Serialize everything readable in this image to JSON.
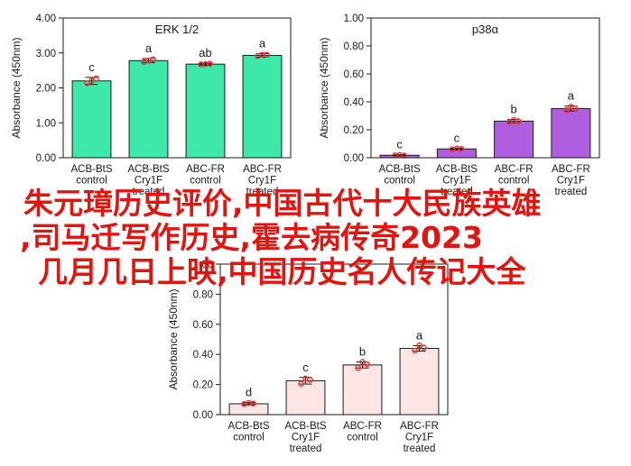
{
  "overlay": {
    "lines": [
      "朱元璋历史评价,中国古代十大民族英雄",
      ",司马迁写作历史,霍去病传奇2023",
      "几月几日上映,中国历史名人传记大全"
    ]
  },
  "colors": {
    "overlay_text": "#e1140f",
    "dot": "#ff2a2a",
    "erk_bar": "#3ee8a8",
    "p38_bar": "#b05ee0",
    "third_bar": "#fde6e4"
  },
  "chart_data": [
    {
      "id": "erk",
      "type": "bar",
      "title": "ERK 1/2",
      "ylabel": "Absorbance (450nm)",
      "xlabel": "",
      "ylim": [
        0,
        4.0
      ],
      "yticks": [
        "0.00",
        "1.00",
        "2.00",
        "3.00",
        "4.00"
      ],
      "categories": [
        [
          "ACB-BtS",
          "control"
        ],
        [
          "ACB-BtS",
          "Cry1F",
          "treated"
        ],
        [
          "ABC-FR",
          "control"
        ],
        [
          "ABC-FR",
          "Cry1F",
          "treated"
        ]
      ],
      "values": [
        2.2,
        2.78,
        2.68,
        2.93
      ],
      "errors": [
        0.1,
        0.06,
        0.03,
        0.05
      ],
      "points": [
        [
          2.13,
          2.2,
          2.27
        ],
        [
          2.74,
          2.78,
          2.82
        ],
        [
          2.67,
          2.68,
          2.69
        ],
        [
          2.91,
          2.95,
          2.95
        ]
      ],
      "letters": [
        "c",
        "a",
        "ab",
        "a"
      ],
      "bar_color": "#3ee8a8",
      "grid": false
    },
    {
      "id": "p38",
      "type": "bar",
      "title": "p38α",
      "ylabel": "Absorbance (450nm)",
      "xlabel": "",
      "ylim": [
        0,
        1.0
      ],
      "yticks": [
        "0.00",
        "0.20",
        "0.40",
        "0.60",
        "0.80",
        "1.00"
      ],
      "categories": [
        [
          "ACB-BtS",
          "control"
        ],
        [
          "ACB-BtS",
          "Cry1F",
          "treated"
        ],
        [
          "ABC-FR",
          "control"
        ],
        [
          "ABC-FR",
          "Cry1F",
          "treated"
        ]
      ],
      "values": [
        0.018,
        0.063,
        0.262,
        0.352
      ],
      "errors": [
        0.004,
        0.006,
        0.012,
        0.018
      ],
      "points": [
        [
          0.018,
          0.02,
          0.016
        ],
        [
          0.06,
          0.066,
          0.064
        ],
        [
          0.255,
          0.27,
          0.262
        ],
        [
          0.34,
          0.365,
          0.352
        ]
      ],
      "letters": [
        "c",
        "c",
        "b",
        "a"
      ],
      "bar_color": "#b05ee0",
      "grid": false
    },
    {
      "id": "third",
      "type": "bar",
      "title": "",
      "ylabel": "Absorbance (450nm)",
      "xlabel": "",
      "ylim": [
        0,
        1.0
      ],
      "yticks": [
        "0.00",
        "0.20",
        "0.40",
        "0.60",
        "0.80",
        "1.00"
      ],
      "categories": [
        [
          "ACB-BtS",
          "control"
        ],
        [
          "ACB-BtS",
          "Cry1F",
          "treated"
        ],
        [
          "ABC-FR",
          "control"
        ],
        [
          "ABC-FR",
          "Cry1F",
          "treated"
        ]
      ],
      "values": [
        0.072,
        0.225,
        0.33,
        0.44
      ],
      "errors": [
        0.008,
        0.022,
        0.02,
        0.018
      ],
      "points": [
        [
          0.07,
          0.078,
          0.074
        ],
        [
          0.205,
          0.24,
          0.23
        ],
        [
          0.31,
          0.35,
          0.335
        ],
        [
          0.425,
          0.46,
          0.445
        ]
      ],
      "letters": [
        "d",
        "c",
        "b",
        "a"
      ],
      "bar_color": "#fde6e4",
      "grid": false
    }
  ]
}
